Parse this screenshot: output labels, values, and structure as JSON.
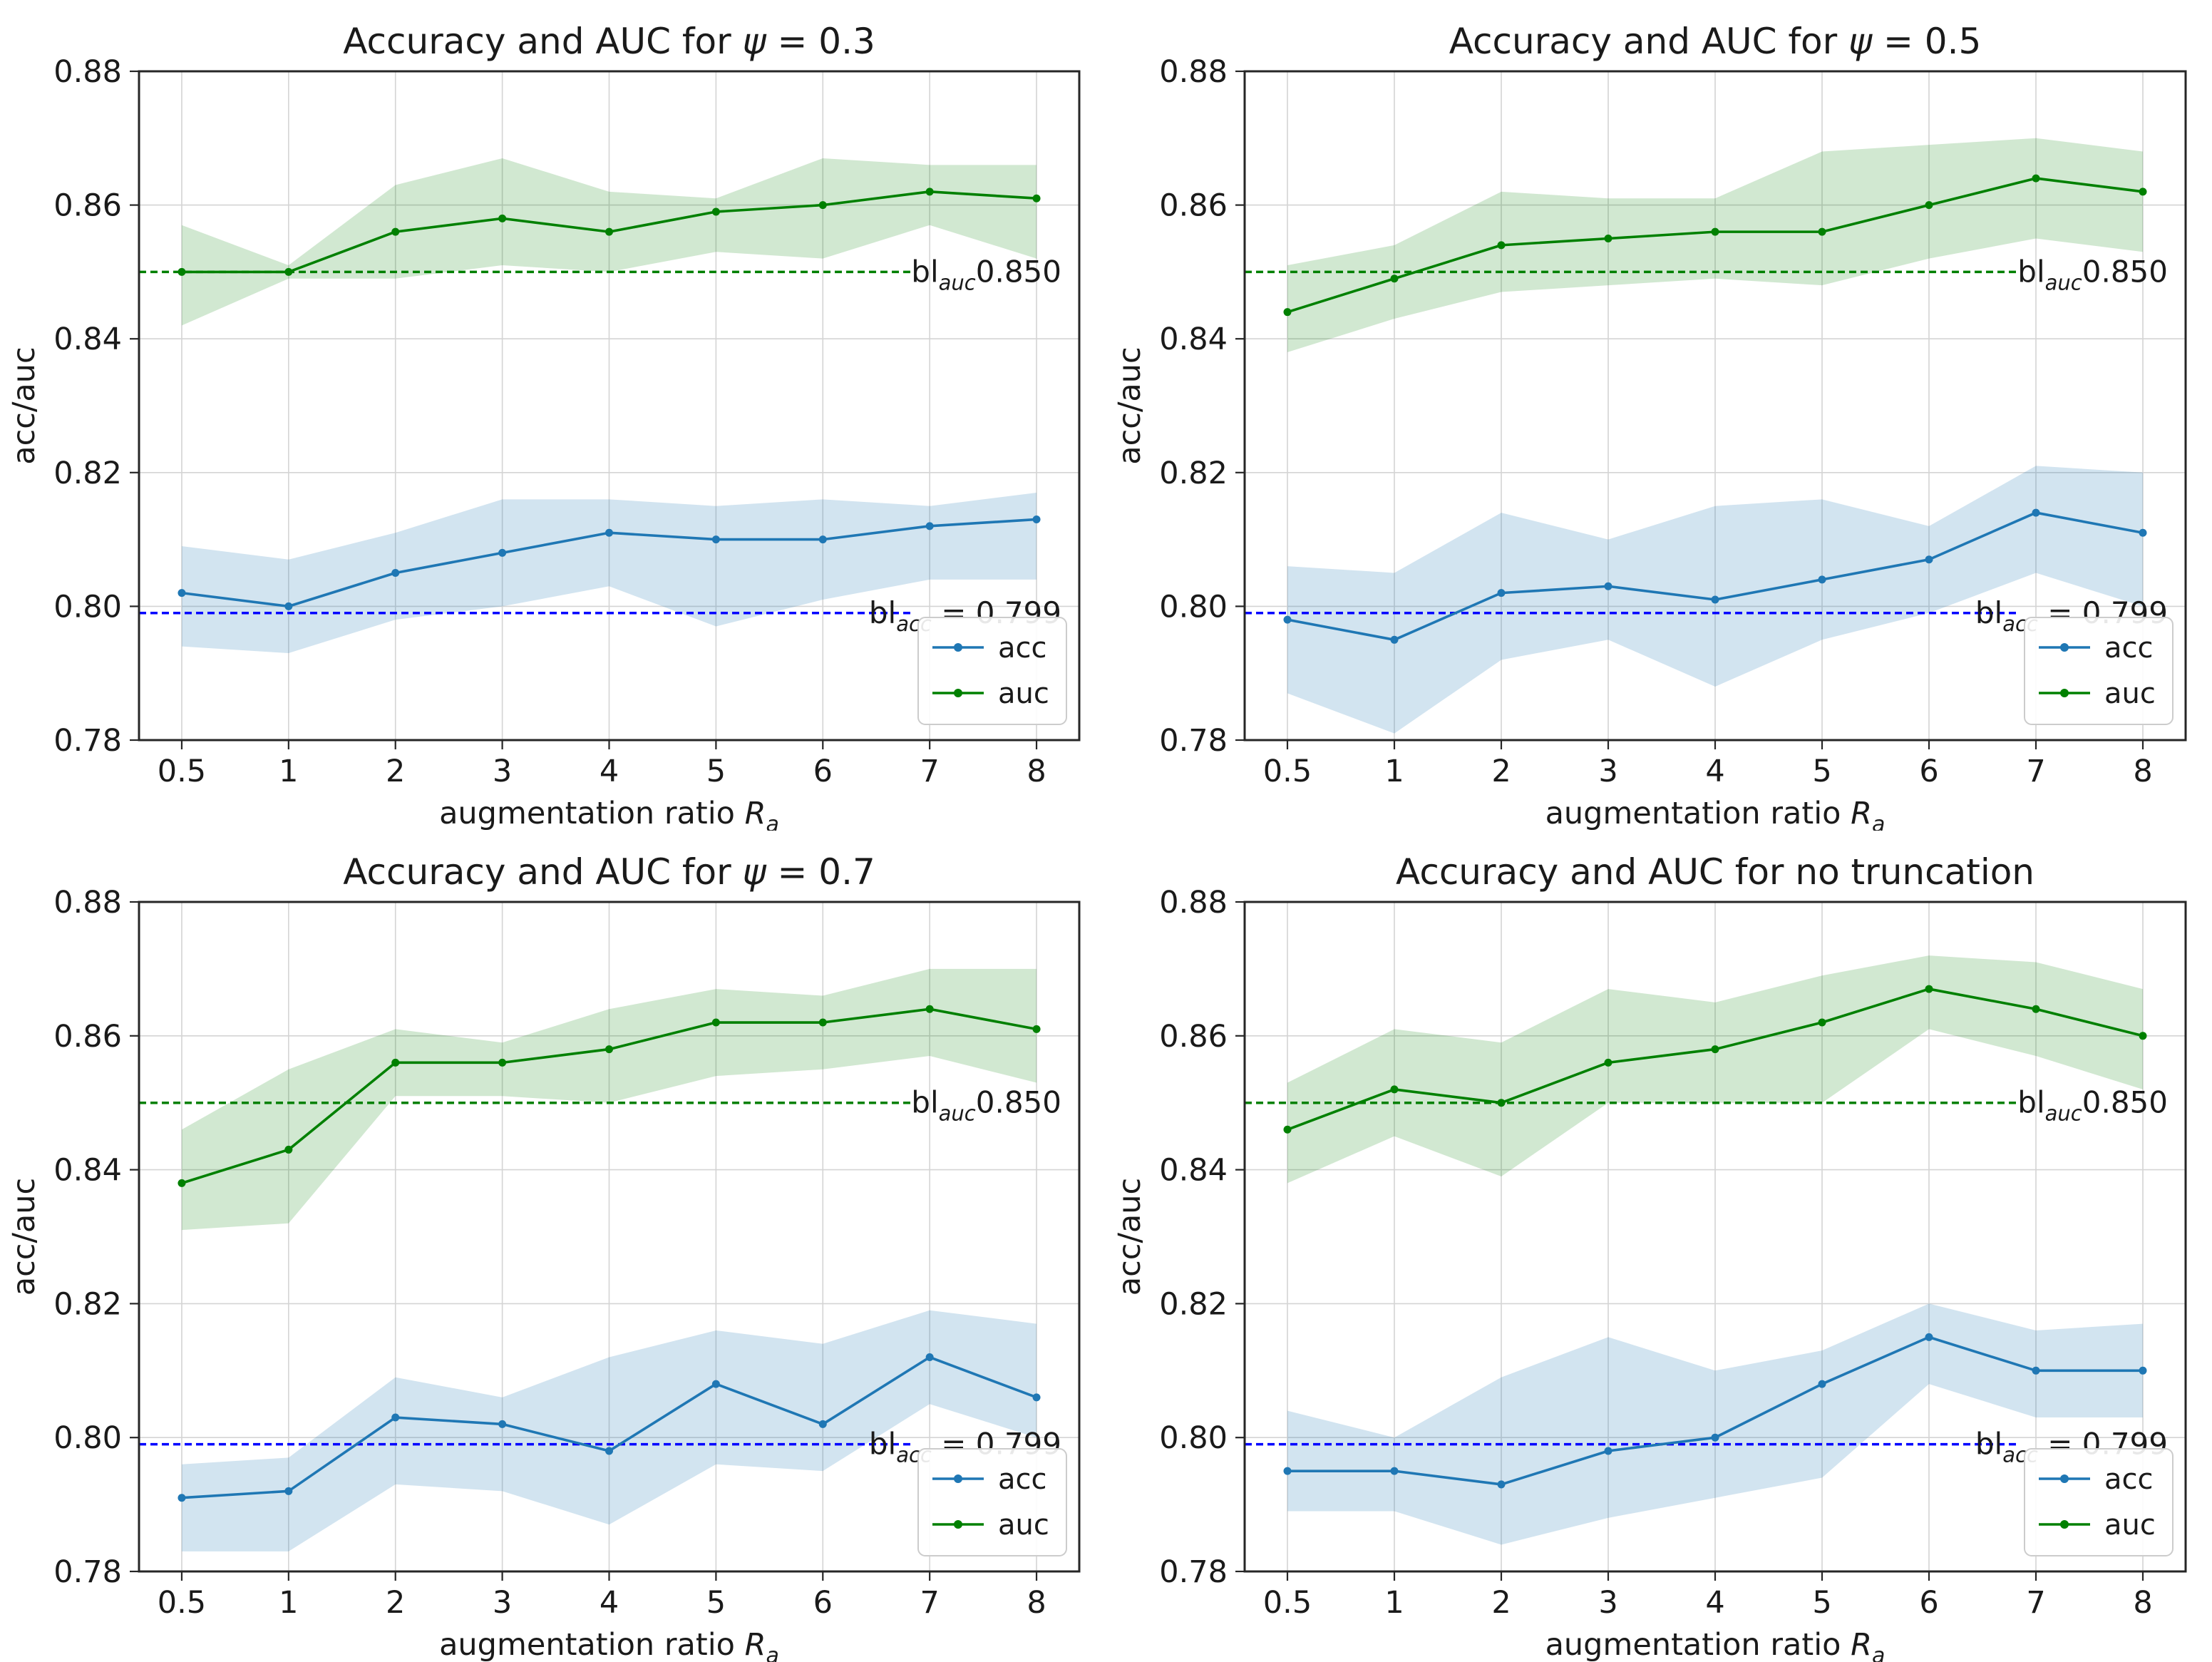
{
  "page": {
    "background": "#ffffff",
    "kind": "matplotlib-figure",
    "grid": "2x2"
  },
  "style": {
    "text_color": "#1a1a1a",
    "spine_color": "#262626",
    "grid_color": "#d4d4d4",
    "legend_border": "#cccccc",
    "legend_bg": "#ffffff",
    "acc_color": "#1f77b4",
    "auc_color": "#008000",
    "baseline_acc_color": "#0000ff",
    "baseline_auc_color": "#008000"
  },
  "chart_data": [
    {
      "type": "line",
      "title": {
        "prefix": "Accuracy and AUC for ",
        "math_italic": "ψ",
        "math_rest": " = 0.3"
      },
      "xlabel": {
        "prefix": "augmentation ratio ",
        "var": "R",
        "sub": "a"
      },
      "ylabel": "acc/auc",
      "categories": [
        "0.5",
        "1",
        "2",
        "3",
        "4",
        "5",
        "6",
        "7",
        "8"
      ],
      "ylim": [
        0.78,
        0.88
      ],
      "yticks": [
        "0.78",
        "0.80",
        "0.82",
        "0.84",
        "0.86",
        "0.88"
      ],
      "grid": true,
      "legend_position": "lower right",
      "series": [
        {
          "name": "acc",
          "color": "#1f77b4",
          "band_opacity": 0.2,
          "values": [
            0.802,
            0.8,
            0.805,
            0.808,
            0.811,
            0.81,
            0.81,
            0.812,
            0.813
          ],
          "band_lower": [
            0.794,
            0.793,
            0.798,
            0.8,
            0.803,
            0.797,
            0.801,
            0.804,
            0.804
          ],
          "band_upper": [
            0.809,
            0.807,
            0.811,
            0.816,
            0.816,
            0.815,
            0.816,
            0.815,
            0.817
          ]
        },
        {
          "name": "auc",
          "color": "#008000",
          "band_opacity": 0.18,
          "values": [
            0.85,
            0.85,
            0.856,
            0.858,
            0.856,
            0.859,
            0.86,
            0.862,
            0.861
          ],
          "band_lower": [
            0.842,
            0.849,
            0.849,
            0.851,
            0.85,
            0.853,
            0.852,
            0.857,
            0.852
          ],
          "band_upper": [
            0.857,
            0.851,
            0.863,
            0.867,
            0.862,
            0.861,
            0.867,
            0.866,
            0.866
          ]
        }
      ],
      "baselines": [
        {
          "id": "auc",
          "value": 0.85,
          "color": "#008000",
          "label_base": "bl",
          "label_sub": "auc",
          "label_rest": "0.850"
        },
        {
          "id": "acc",
          "value": 0.799,
          "color": "#0000ff",
          "label_base": "bl",
          "label_sub": "acc",
          "label_rest": " = 0.799"
        }
      ]
    },
    {
      "type": "line",
      "title": {
        "prefix": "Accuracy and AUC for ",
        "math_italic": "ψ",
        "math_rest": " = 0.5"
      },
      "xlabel": {
        "prefix": "augmentation ratio ",
        "var": "R",
        "sub": "a"
      },
      "ylabel": "acc/auc",
      "categories": [
        "0.5",
        "1",
        "2",
        "3",
        "4",
        "5",
        "6",
        "7",
        "8"
      ],
      "ylim": [
        0.78,
        0.88
      ],
      "yticks": [
        "0.78",
        "0.80",
        "0.82",
        "0.84",
        "0.86",
        "0.88"
      ],
      "grid": true,
      "legend_position": "lower right",
      "series": [
        {
          "name": "acc",
          "color": "#1f77b4",
          "band_opacity": 0.2,
          "values": [
            0.798,
            0.795,
            0.802,
            0.803,
            0.801,
            0.804,
            0.807,
            0.814,
            0.811
          ],
          "band_lower": [
            0.787,
            0.781,
            0.792,
            0.795,
            0.788,
            0.795,
            0.799,
            0.805,
            0.8
          ],
          "band_upper": [
            0.806,
            0.805,
            0.814,
            0.81,
            0.815,
            0.816,
            0.812,
            0.821,
            0.82
          ]
        },
        {
          "name": "auc",
          "color": "#008000",
          "band_opacity": 0.18,
          "values": [
            0.844,
            0.849,
            0.854,
            0.855,
            0.856,
            0.856,
            0.86,
            0.864,
            0.862
          ],
          "band_lower": [
            0.838,
            0.843,
            0.847,
            0.848,
            0.849,
            0.848,
            0.852,
            0.855,
            0.853
          ],
          "band_upper": [
            0.851,
            0.854,
            0.862,
            0.861,
            0.861,
            0.868,
            0.869,
            0.87,
            0.868
          ]
        }
      ],
      "baselines": [
        {
          "id": "auc",
          "value": 0.85,
          "color": "#008000",
          "label_base": "bl",
          "label_sub": "auc",
          "label_rest": "0.850"
        },
        {
          "id": "acc",
          "value": 0.799,
          "color": "#0000ff",
          "label_base": "bl",
          "label_sub": "acc",
          "label_rest": " = 0.799"
        }
      ]
    },
    {
      "type": "line",
      "title": {
        "prefix": "Accuracy and AUC for ",
        "math_italic": "ψ",
        "math_rest": " = 0.7"
      },
      "xlabel": {
        "prefix": "augmentation ratio ",
        "var": "R",
        "sub": "a"
      },
      "ylabel": "acc/auc",
      "categories": [
        "0.5",
        "1",
        "2",
        "3",
        "4",
        "5",
        "6",
        "7",
        "8"
      ],
      "ylim": [
        0.78,
        0.88
      ],
      "yticks": [
        "0.78",
        "0.80",
        "0.82",
        "0.84",
        "0.86",
        "0.88"
      ],
      "grid": true,
      "legend_position": "lower right",
      "series": [
        {
          "name": "acc",
          "color": "#1f77b4",
          "band_opacity": 0.2,
          "values": [
            0.791,
            0.792,
            0.803,
            0.802,
            0.798,
            0.808,
            0.802,
            0.812,
            0.806
          ],
          "band_lower": [
            0.783,
            0.783,
            0.793,
            0.792,
            0.787,
            0.796,
            0.795,
            0.805,
            0.8
          ],
          "band_upper": [
            0.796,
            0.797,
            0.809,
            0.806,
            0.812,
            0.816,
            0.814,
            0.819,
            0.817
          ]
        },
        {
          "name": "auc",
          "color": "#008000",
          "band_opacity": 0.18,
          "values": [
            0.838,
            0.843,
            0.856,
            0.856,
            0.858,
            0.862,
            0.862,
            0.864,
            0.861
          ],
          "band_lower": [
            0.831,
            0.832,
            0.851,
            0.851,
            0.85,
            0.854,
            0.855,
            0.857,
            0.853
          ],
          "band_upper": [
            0.846,
            0.855,
            0.861,
            0.859,
            0.864,
            0.867,
            0.866,
            0.87,
            0.87
          ]
        }
      ],
      "baselines": [
        {
          "id": "auc",
          "value": 0.85,
          "color": "#008000",
          "label_base": "bl",
          "label_sub": "auc",
          "label_rest": "0.850"
        },
        {
          "id": "acc",
          "value": 0.799,
          "color": "#0000ff",
          "label_base": "bl",
          "label_sub": "acc",
          "label_rest": " = 0.799"
        }
      ]
    },
    {
      "type": "line",
      "title": {
        "prefix": "Accuracy and AUC for no truncation",
        "math_italic": "",
        "math_rest": ""
      },
      "xlabel": {
        "prefix": "augmentation ratio ",
        "var": "R",
        "sub": "a"
      },
      "ylabel": "acc/auc",
      "categories": [
        "0.5",
        "1",
        "2",
        "3",
        "4",
        "5",
        "6",
        "7",
        "8"
      ],
      "ylim": [
        0.78,
        0.88
      ],
      "yticks": [
        "0.78",
        "0.80",
        "0.82",
        "0.84",
        "0.86",
        "0.88"
      ],
      "grid": true,
      "legend_position": "lower right",
      "series": [
        {
          "name": "acc",
          "color": "#1f77b4",
          "band_opacity": 0.2,
          "values": [
            0.795,
            0.795,
            0.793,
            0.798,
            0.8,
            0.808,
            0.815,
            0.81,
            0.81
          ],
          "band_lower": [
            0.789,
            0.789,
            0.784,
            0.788,
            0.791,
            0.794,
            0.808,
            0.803,
            0.803
          ],
          "band_upper": [
            0.804,
            0.8,
            0.809,
            0.815,
            0.81,
            0.813,
            0.82,
            0.816,
            0.817
          ]
        },
        {
          "name": "auc",
          "color": "#008000",
          "band_opacity": 0.18,
          "values": [
            0.846,
            0.852,
            0.85,
            0.856,
            0.858,
            0.862,
            0.867,
            0.864,
            0.86
          ],
          "band_lower": [
            0.838,
            0.845,
            0.839,
            0.85,
            0.85,
            0.85,
            0.861,
            0.857,
            0.852
          ],
          "band_upper": [
            0.853,
            0.861,
            0.859,
            0.867,
            0.865,
            0.869,
            0.872,
            0.871,
            0.867
          ]
        }
      ],
      "baselines": [
        {
          "id": "auc",
          "value": 0.85,
          "color": "#008000",
          "label_base": "bl",
          "label_sub": "auc",
          "label_rest": "0.850"
        },
        {
          "id": "acc",
          "value": 0.799,
          "color": "#0000ff",
          "label_base": "bl",
          "label_sub": "acc",
          "label_rest": " = 0.799"
        }
      ]
    }
  ],
  "legend": {
    "entries": [
      {
        "label": "acc",
        "color": "#1f77b4"
      },
      {
        "label": "auc",
        "color": "#008000"
      }
    ]
  }
}
